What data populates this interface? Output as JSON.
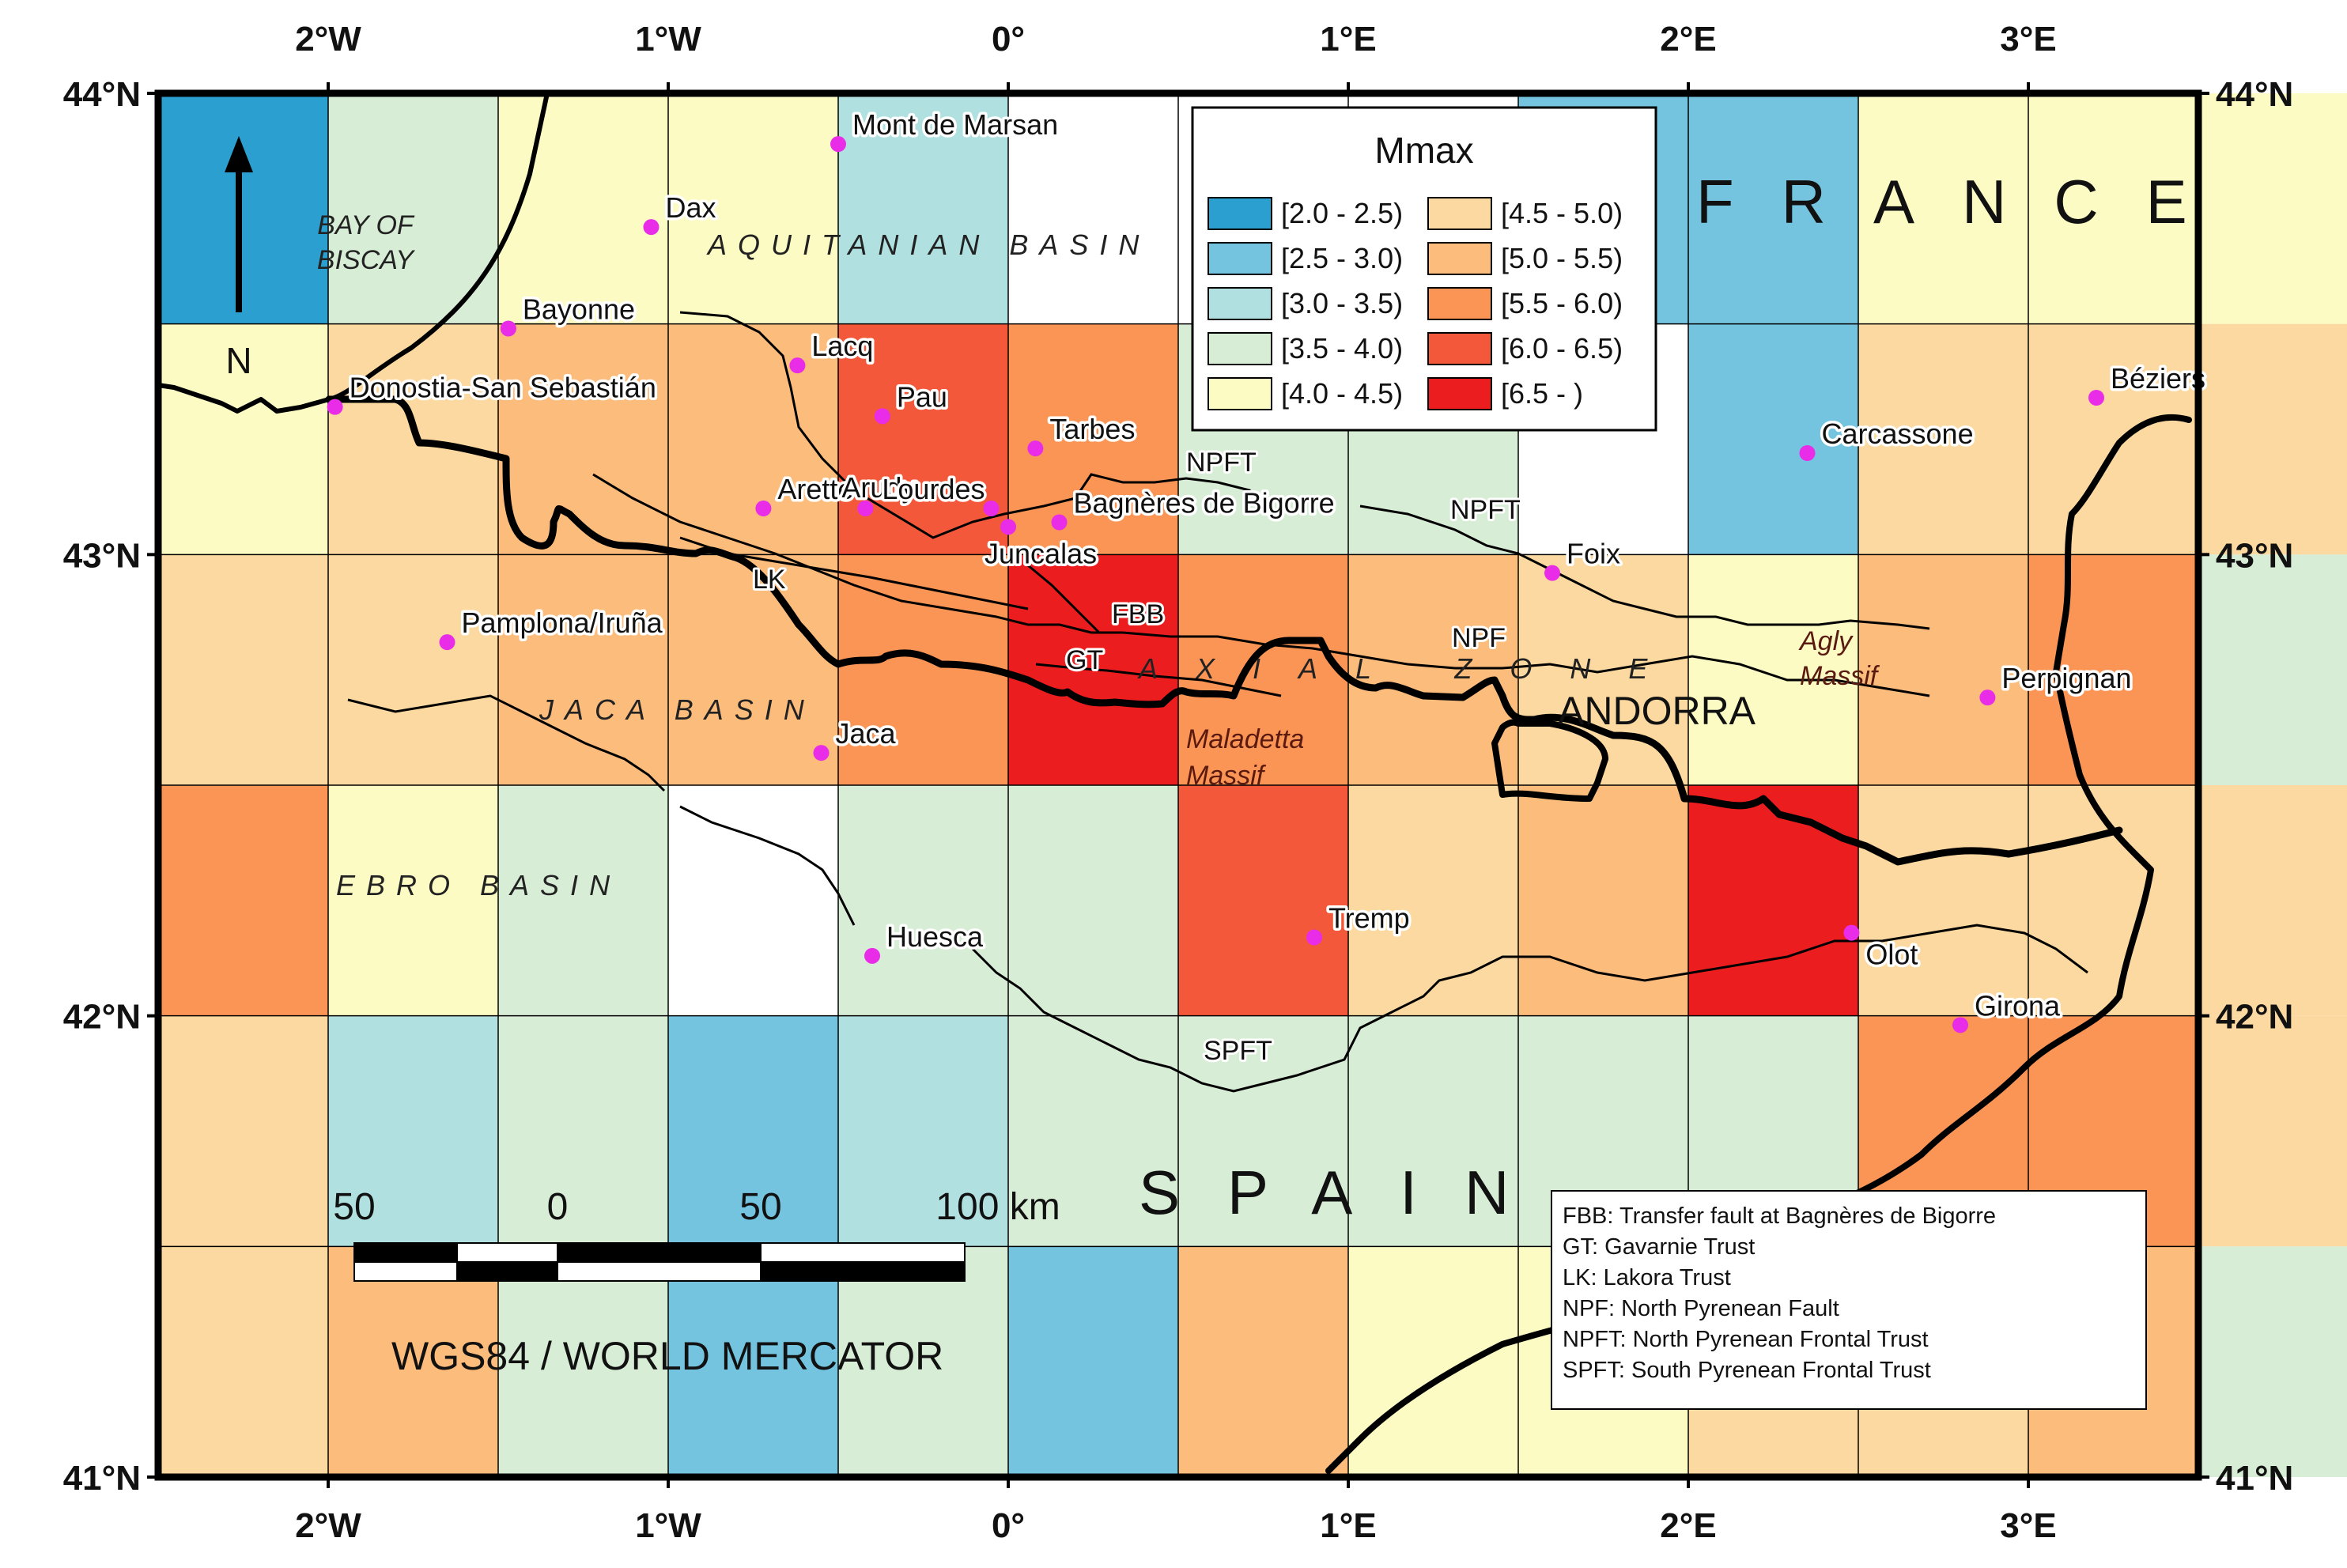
{
  "map": {
    "lon_ticks": [
      {
        "lon": -2,
        "label": "2°W"
      },
      {
        "lon": -1,
        "label": "1°W"
      },
      {
        "lon": 0,
        "label": "0°"
      },
      {
        "lon": 1,
        "label": "1°E"
      },
      {
        "lon": 2,
        "label": "2°E"
      },
      {
        "lon": 3,
        "label": "3°E"
      }
    ],
    "lat_ticks": [
      {
        "lat": 44,
        "label": "44°N"
      },
      {
        "lat": 43,
        "label": "43°N"
      },
      {
        "lat": 42,
        "label": "42°N"
      },
      {
        "lat": 41,
        "label": "41°N"
      }
    ],
    "grid_rows_mmax": [
      [
        "2.0-2.5",
        "3.5-4.0",
        "4.0-4.5",
        "4.0-4.5",
        "3.0-3.5",
        "none",
        "none",
        "none",
        "2.5-3.0",
        "2.5-3.0",
        "4.0-4.5",
        "4.0-4.5",
        "4.0-4.5"
      ],
      [
        "4.0-4.5",
        "4.5-5.0",
        "5.0-5.5",
        "5.0-5.5",
        "6.0-6.5",
        "5.5-6.0",
        "3.5-4.0",
        "3.5-4.0",
        "none",
        "2.5-3.0",
        "4.5-5.0",
        "4.5-5.0",
        "4.5-5.0"
      ],
      [
        "4.5-5.0",
        "4.5-5.0",
        "5.0-5.5",
        "5.0-5.5",
        "5.5-6.0",
        "6.5-",
        "5.5-6.0",
        "5.0-5.5",
        "4.5-5.0",
        "4.0-4.5",
        "5.0-5.5",
        "5.5-6.0",
        "3.5-4.0"
      ],
      [
        "5.5-6.0",
        "4.0-4.5",
        "3.5-4.0",
        "none",
        "3.5-4.0",
        "3.5-4.0",
        "6.0-6.5",
        "4.5-5.0",
        "5.0-5.5",
        "6.5-",
        "4.5-5.0",
        "4.5-5.0",
        "4.5-5.0"
      ],
      [
        "4.5-5.0",
        "3.0-3.5",
        "3.5-4.0",
        "2.5-3.0",
        "3.0-3.5",
        "3.5-4.0",
        "3.5-4.0",
        "3.5-4.0",
        "3.5-4.0",
        "3.5-4.0",
        "5.5-6.0",
        "5.5-6.0",
        "4.5-5.0"
      ],
      [
        "4.5-5.0",
        "5.0-5.5",
        "3.5-4.0",
        "2.5-3.0",
        "3.5-4.0",
        "2.5-3.0",
        "5.0-5.5",
        "4.0-4.5",
        "4.0-4.5",
        "4.5-5.0",
        "4.5-5.0",
        "5.0-5.5",
        "3.5-4.0"
      ]
    ],
    "legend": {
      "title": "Mmax",
      "items": [
        {
          "key": "2.0-2.5",
          "label": "[2.0 - 2.5)",
          "color": "#2b9fcf"
        },
        {
          "key": "2.5-3.0",
          "label": "[2.5 - 3.0)",
          "color": "#74c4e0"
        },
        {
          "key": "3.0-3.5",
          "label": "[3.0 - 3.5)",
          "color": "#b0e0e0"
        },
        {
          "key": "3.5-4.0",
          "label": "[3.5 - 4.0)",
          "color": "#d8edd6"
        },
        {
          "key": "4.0-4.5",
          "label": "[4.0 - 4.5)",
          "color": "#fcfbc4"
        },
        {
          "key": "4.5-5.0",
          "label": "[4.5 - 5.0)",
          "color": "#fcd9a0"
        },
        {
          "key": "5.0-5.5",
          "label": "[5.0 - 5.5)",
          "color": "#fcbc7c"
        },
        {
          "key": "5.5-6.0",
          "label": "[5.5 - 6.0)",
          "color": "#fb9556"
        },
        {
          "key": "6.0-6.5",
          "label": "[6.0 - 6.5)",
          "color": "#f4583a"
        },
        {
          "key": "6.5-",
          "label": "[6.5 - )",
          "color": "#ec1d1f"
        }
      ]
    },
    "cities": [
      {
        "name": "Mont de Marsan",
        "lon": -0.5,
        "lat": 43.89
      },
      {
        "name": "Dax",
        "lon": -1.05,
        "lat": 43.71
      },
      {
        "name": "Bayonne",
        "lon": -1.47,
        "lat": 43.49
      },
      {
        "name": "Lacq",
        "lon": -0.62,
        "lat": 43.41
      },
      {
        "name": "Donostia-San Sebastián",
        "lon": -1.98,
        "lat": 43.32
      },
      {
        "name": "Pau",
        "lon": -0.37,
        "lat": 43.3
      },
      {
        "name": "Tarbes",
        "lon": 0.08,
        "lat": 43.23
      },
      {
        "name": "Arette",
        "lon": -0.72,
        "lat": 43.1
      },
      {
        "name": "Arudy",
        "lon": -0.42,
        "lat": 43.1
      },
      {
        "name": "Lourdes",
        "lon": -0.05,
        "lat": 43.1
      },
      {
        "name": "Bagnères de Bigorre",
        "lon": 0.15,
        "lat": 43.07
      },
      {
        "name": "Juncalas",
        "lon": 0.0,
        "lat": 43.06
      },
      {
        "name": "Foix",
        "lon": 1.6,
        "lat": 42.96
      },
      {
        "name": "Pamplona/Iruña",
        "lon": -1.65,
        "lat": 42.81
      },
      {
        "name": "Jaca",
        "lon": -0.55,
        "lat": 42.57
      },
      {
        "name": "Carcassone",
        "lon": 2.35,
        "lat": 43.22
      },
      {
        "name": "Béziers",
        "lon": 3.2,
        "lat": 43.34
      },
      {
        "name": "Perpignan",
        "lon": 2.88,
        "lat": 42.69
      },
      {
        "name": "Huesca",
        "lon": -0.4,
        "lat": 42.13
      },
      {
        "name": "Tremp",
        "lon": 0.9,
        "lat": 42.17
      },
      {
        "name": "Olot",
        "lon": 2.48,
        "lat": 42.18
      },
      {
        "name": "Girona",
        "lon": 2.8,
        "lat": 41.98
      }
    ],
    "region_labels": {
      "bay": [
        "BAY OF",
        "BISCAY"
      ],
      "aquitanian": "AQUITANIAN BASIN",
      "jaca": "JACA BASIN",
      "ebro": "EBRO BASIN",
      "axial": "AXIAL ZONE",
      "agly": [
        "Agly",
        "Massif"
      ],
      "maladetta": [
        "Maladetta",
        "Massif"
      ],
      "france": "FRANCE",
      "spain": "SPAIN",
      "andorra": "ANDORRA"
    },
    "fault_labels": {
      "npft1": "NPFT",
      "npft2": "NPFT",
      "lk": "LK",
      "fbb": "FBB",
      "gt": "GT",
      "npf": "NPF",
      "spft": "SPFT"
    },
    "scalebar": {
      "labels": [
        "50",
        "0",
        "50",
        "100 km"
      ]
    },
    "projection": "WGS84 / WORLD MERCATOR",
    "north_label": "N",
    "abbreviations": [
      "FBB: Transfer fault at Bagnères de Bigorre",
      "GT: Gavarnie Trust",
      "LK: Lakora Trust",
      "NPF: North Pyrenean Fault",
      "NPFT: North Pyrenean Frontal Trust",
      "SPFT: South Pyrenean Frontal Trust"
    ],
    "colors": {
      "city_marker": "#e82ce8",
      "frame": "#000000",
      "none_cell": "#ffffff"
    }
  }
}
